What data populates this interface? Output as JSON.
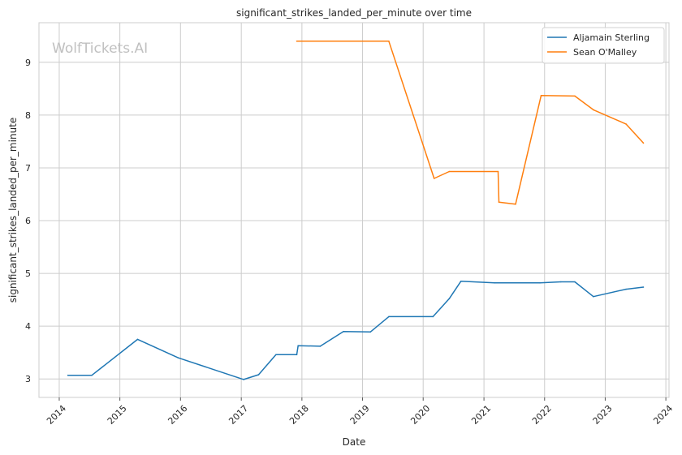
{
  "chart_data": {
    "type": "line",
    "title": "significant_strikes_landed_per_minute over time",
    "xlabel": "Date",
    "ylabel": "significant_strikes_landed_per_minute",
    "watermark": "WolfTickets.AI",
    "xlim": [
      "2013-09-01",
      "2024-01-20"
    ],
    "ylim": [
      2.65,
      9.75
    ],
    "x_ticks": [
      "2014",
      "2015",
      "2016",
      "2017",
      "2018",
      "2019",
      "2020",
      "2021",
      "2022",
      "2023",
      "2024"
    ],
    "y_ticks": [
      "3",
      "4",
      "5",
      "6",
      "7",
      "8",
      "9"
    ],
    "grid": true,
    "legend_position": "top-right",
    "series": [
      {
        "name": "Aljamain Sterling",
        "color": "#1f77b4",
        "points": [
          [
            "2014-02-22",
            3.07
          ],
          [
            "2014-07-16",
            3.07
          ],
          [
            "2015-04-18",
            3.75
          ],
          [
            "2015-12-19",
            3.4
          ],
          [
            "2017-01-15",
            2.99
          ],
          [
            "2017-04-15",
            3.08
          ],
          [
            "2017-07-29",
            3.46
          ],
          [
            "2017-12-01",
            3.46
          ],
          [
            "2017-12-09",
            3.63
          ],
          [
            "2018-04-21",
            3.62
          ],
          [
            "2018-09-08",
            3.9
          ],
          [
            "2019-02-17",
            3.89
          ],
          [
            "2019-06-08",
            4.18
          ],
          [
            "2020-02-29",
            4.18
          ],
          [
            "2020-06-06",
            4.52
          ],
          [
            "2020-08-15",
            4.85
          ],
          [
            "2021-03-06",
            4.82
          ],
          [
            "2021-12-04",
            4.82
          ],
          [
            "2022-04-09",
            4.84
          ],
          [
            "2022-07-02",
            4.84
          ],
          [
            "2022-10-22",
            4.56
          ],
          [
            "2023-05-06",
            4.7
          ],
          [
            "2023-08-19",
            4.74
          ]
        ]
      },
      {
        "name": "Sean O'Malley",
        "color": "#ff7f0e",
        "points": [
          [
            "2017-12-01",
            9.4
          ],
          [
            "2019-06-08",
            9.4
          ],
          [
            "2020-03-07",
            6.8
          ],
          [
            "2020-06-06",
            6.93
          ],
          [
            "2021-03-27",
            6.93
          ],
          [
            "2021-04-01",
            6.35
          ],
          [
            "2021-07-10",
            6.31
          ],
          [
            "2021-12-11",
            8.37
          ],
          [
            "2022-07-02",
            8.36
          ],
          [
            "2022-10-22",
            8.1
          ],
          [
            "2023-05-06",
            7.83
          ],
          [
            "2023-08-19",
            7.47
          ]
        ]
      }
    ]
  }
}
